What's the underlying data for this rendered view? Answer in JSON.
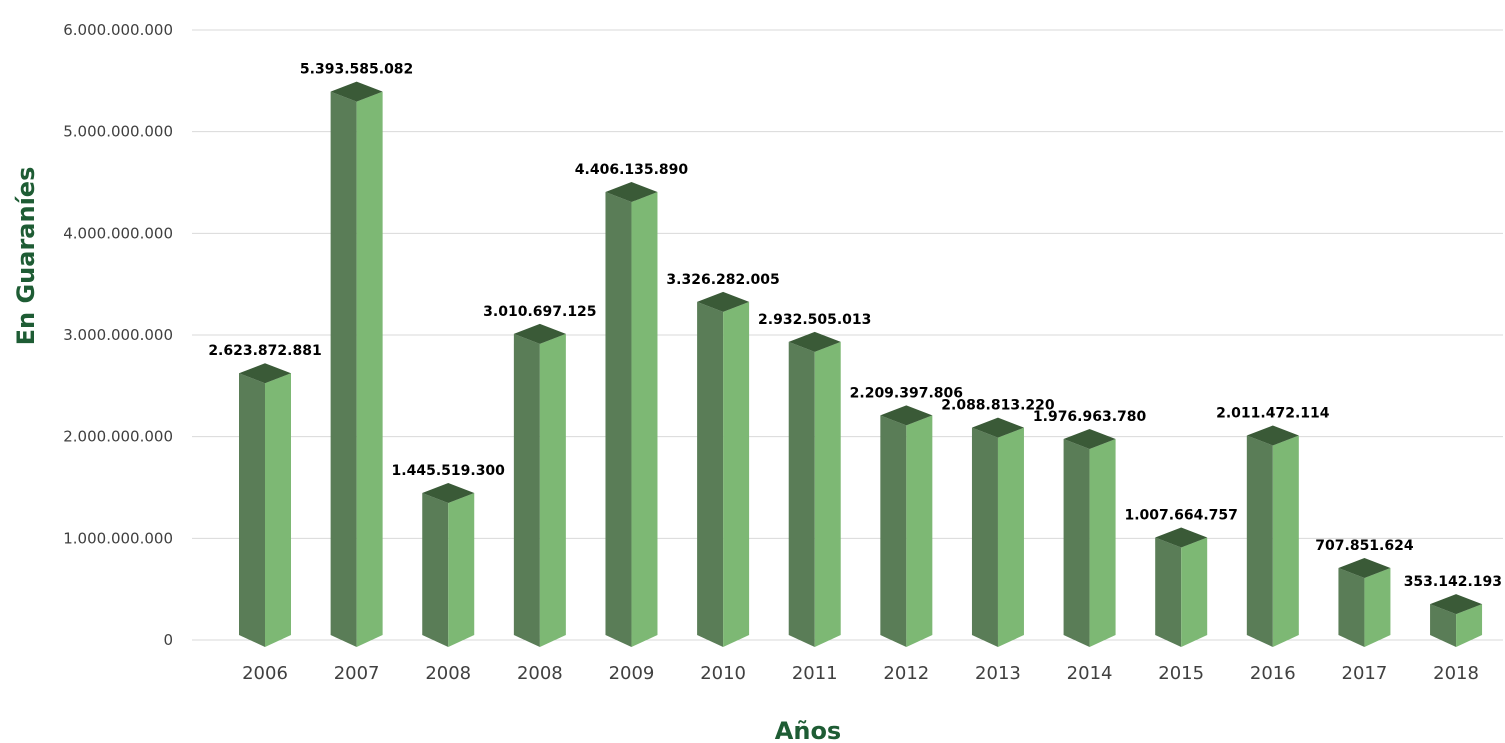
{
  "chart_data": {
    "type": "bar",
    "categories": [
      "2006",
      "2007",
      "2008",
      "2008",
      "2009",
      "2010",
      "2011",
      "2012",
      "2013",
      "2014",
      "2015",
      "2016",
      "2017",
      "2018"
    ],
    "values": [
      2623872881,
      5393585082,
      1445519300,
      3010697125,
      4406135890,
      3326282005,
      2932505013,
      2209397806,
      2088813220,
      1976963780,
      1007664757,
      2011472114,
      707851624,
      353142193
    ],
    "data_labels": [
      "2.623.872.881",
      "5.393.585.082",
      "1.445.519.300",
      "3.010.697.125",
      "4.406.135.890",
      "3.326.282.005",
      "2.932.505.013",
      "2.209.397.806",
      "2.088.813.220",
      "1.976.963.780",
      "1.007.664.757",
      "2.011.472.114",
      "707.851.624",
      "353.142.193"
    ],
    "xlabel": "Años",
    "ylabel": "En Guaraníes",
    "ylim": [
      0,
      6000000000
    ],
    "y_ticks": [
      0,
      1000000000,
      2000000000,
      3000000000,
      4000000000,
      5000000000,
      6000000000
    ],
    "y_tick_labels": [
      "0",
      "1.000.000.000",
      "2.000.000.000",
      "3.000.000.000",
      "4.000.000.000",
      "5.000.000.000",
      "6.000.000.000"
    ],
    "grid": true,
    "legend": "none",
    "style": "3d-column"
  },
  "colors": {
    "bar_front": "#7db874",
    "bar_side": "#5a7d57",
    "bar_top": "#3a5a37",
    "axis_title": "#1e5c34",
    "grid": "#d9d9d9"
  }
}
